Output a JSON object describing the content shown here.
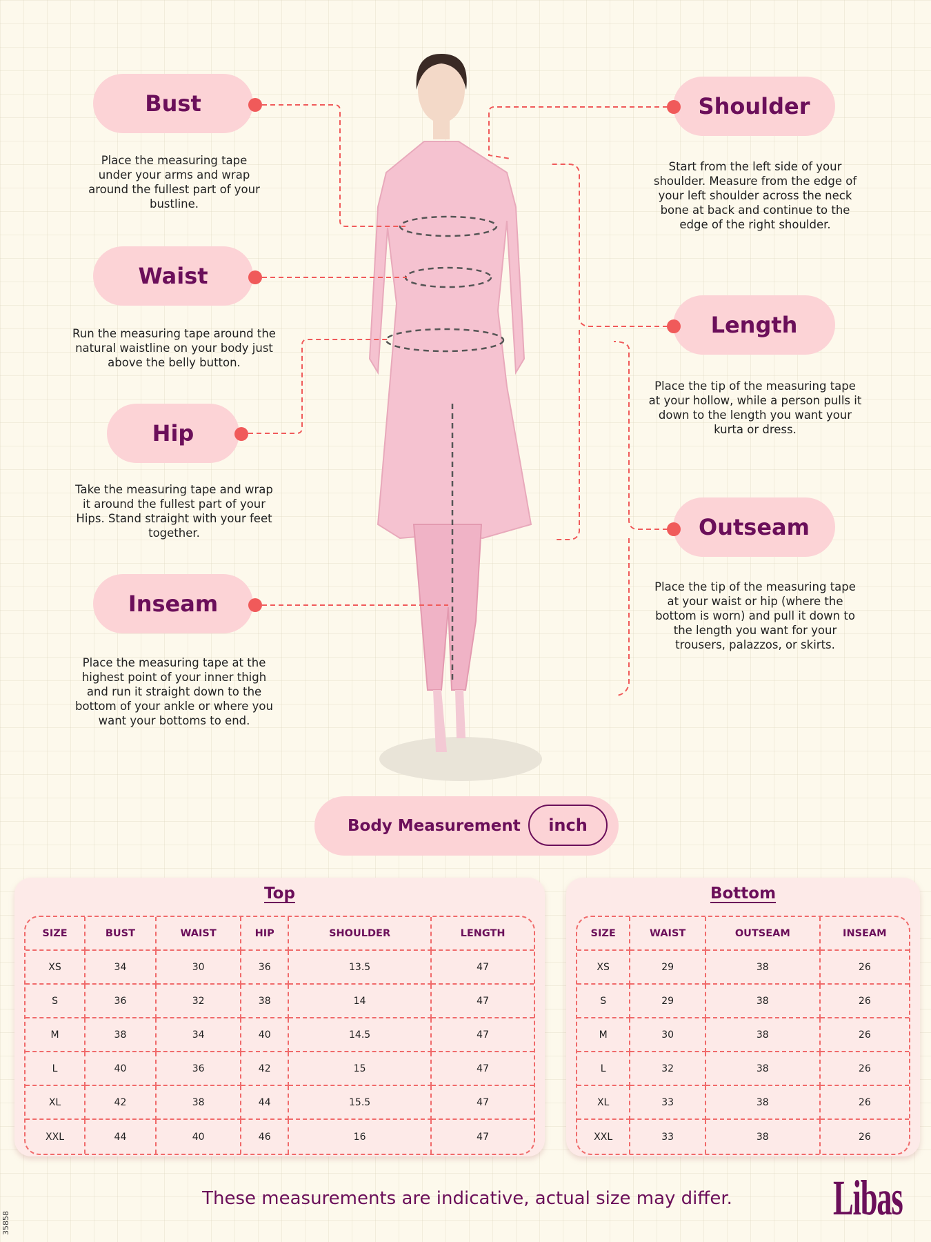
{
  "measurements": {
    "bust": {
      "label": "Bust",
      "desc": "Place the measuring tape under your arms and wrap around the fullest part of your bustline."
    },
    "waist": {
      "label": "Waist",
      "desc": "Run the measuring tape around the natural waistline on your body just above the belly button."
    },
    "hip": {
      "label": "Hip",
      "desc": "Take the measuring tape and wrap it around the fullest part of your Hips. Stand straight with your feet together."
    },
    "inseam": {
      "label": "Inseam",
      "desc": "Place the measuring tape at the highest point of your inner thigh and run it straight down to the bottom of your ankle or where you want your bottoms to end."
    },
    "shoulder": {
      "label": "Shoulder",
      "desc": "Start from the left side of your shoulder. Measure from the edge of your left shoulder across the neck bone at back and continue to the edge of the right shoulder."
    },
    "length": {
      "label": "Length",
      "desc": "Place the tip of the measuring tape at your hollow, while a person pulls it down to the length you want your kurta or dress."
    },
    "outseam": {
      "label": "Outseam",
      "desc": "Place the tip of the measuring tape at your waist or hip (where the bottom is worn) and pull it down to the length you want for your trousers, palazzos, or skirts."
    }
  },
  "body_measurement": {
    "label": "Body Measurement",
    "unit": "inch"
  },
  "top_table": {
    "title": "Top",
    "headers": [
      "SIZE",
      "BUST",
      "WAIST",
      "HIP",
      "SHOULDER",
      "LENGTH"
    ],
    "rows": [
      [
        "XS",
        "34",
        "30",
        "36",
        "13.5",
        "47"
      ],
      [
        "S",
        "36",
        "32",
        "38",
        "14",
        "47"
      ],
      [
        "M",
        "38",
        "34",
        "40",
        "14.5",
        "47"
      ],
      [
        "L",
        "40",
        "36",
        "42",
        "15",
        "47"
      ],
      [
        "XL",
        "42",
        "38",
        "44",
        "15.5",
        "47"
      ],
      [
        "XXL",
        "44",
        "40",
        "46",
        "16",
        "47"
      ]
    ]
  },
  "bottom_table": {
    "title": "Bottom",
    "headers": [
      "SIZE",
      "WAIST",
      "OUTSEAM",
      "INSEAM"
    ],
    "rows": [
      [
        "XS",
        "29",
        "38",
        "26"
      ],
      [
        "S",
        "29",
        "38",
        "26"
      ],
      [
        "M",
        "30",
        "38",
        "26"
      ],
      [
        "L",
        "32",
        "38",
        "26"
      ],
      [
        "XL",
        "33",
        "38",
        "26"
      ],
      [
        "XXL",
        "33",
        "38",
        "26"
      ]
    ]
  },
  "footer": "These measurements are indicative, actual size may differ.",
  "brand": "Libas",
  "code": "35858",
  "colors": {
    "pill": "#fcd3d6",
    "text": "#6b0f5a",
    "dash": "#f05a5a",
    "background": "#fdf9ec"
  }
}
